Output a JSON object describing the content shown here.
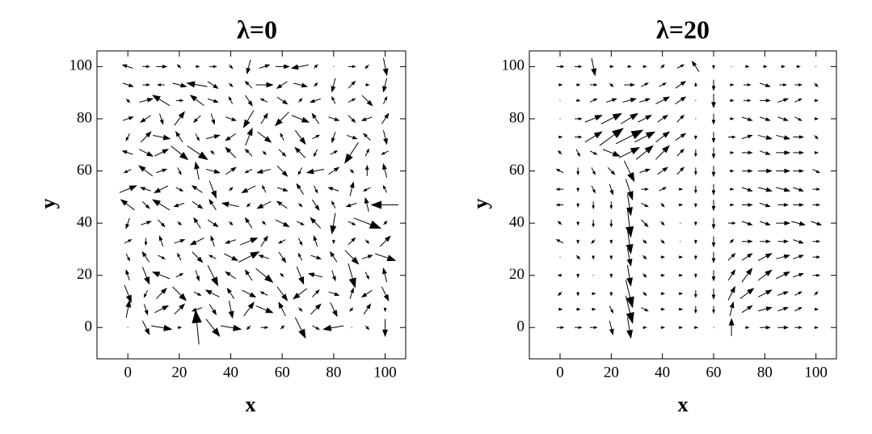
{
  "chart_data": [
    {
      "type": "quiver",
      "title": "λ=0",
      "xlabel": "x",
      "ylabel": "y",
      "color": "#000000",
      "x": [
        0,
        7,
        13,
        20,
        27,
        33,
        40,
        47,
        53,
        60,
        67,
        73,
        80,
        87,
        93,
        100
      ],
      "y": [
        0,
        7,
        13,
        20,
        27,
        33,
        40,
        47,
        53,
        60,
        67,
        73,
        80,
        87,
        93,
        100
      ],
      "u": [
        [
          0,
          2,
          6,
          1,
          -1,
          4,
          6,
          -1,
          2,
          1,
          3,
          2,
          -6,
          0,
          1,
          0
        ],
        [
          1,
          1,
          4,
          3,
          -3,
          2,
          1,
          3,
          5,
          -2,
          1,
          3,
          2,
          -1,
          2,
          0
        ],
        [
          2,
          -1,
          3,
          4,
          2,
          -4,
          -2,
          4,
          -2,
          3,
          -4,
          2,
          3,
          1,
          -3,
          2
        ],
        [
          -1,
          2,
          -5,
          2,
          1,
          3,
          -3,
          -2,
          5,
          -1,
          2,
          -4,
          1,
          2,
          1,
          -1
        ],
        [
          1,
          -2,
          2,
          -1,
          3,
          -2,
          4,
          6,
          -3,
          2,
          -1,
          3,
          -2,
          4,
          3,
          6
        ],
        [
          2,
          0,
          -1,
          3,
          -4,
          -1,
          -3,
          5,
          2,
          -2,
          1,
          -1,
          0,
          2,
          1,
          3
        ],
        [
          -1,
          3,
          2,
          1,
          -2,
          3,
          1,
          -2,
          -1,
          4,
          2,
          -3,
          -1,
          2,
          8,
          1
        ],
        [
          -4,
          2,
          -5,
          -3,
          3,
          -2,
          -5,
          -1,
          -4,
          -3,
          1,
          2,
          -1,
          -3,
          -1,
          -8
        ],
        [
          5,
          -3,
          -4,
          2,
          -3,
          2,
          1,
          -4,
          -1,
          3,
          -2,
          1,
          -3,
          1,
          -2,
          -1
        ],
        [
          -2,
          -4,
          3,
          1,
          -1,
          4,
          3,
          -2,
          -4,
          3,
          -1,
          -5,
          3,
          1,
          0,
          -1
        ],
        [
          -3,
          4,
          4,
          5,
          6,
          -1,
          -3,
          -2,
          1,
          2,
          -3,
          -1,
          2,
          -4,
          1,
          -2
        ],
        [
          -1,
          3,
          5,
          -2,
          1,
          4,
          -3,
          2,
          4,
          -1,
          3,
          2,
          -1,
          3,
          -2,
          1
        ],
        [
          3,
          -3,
          1,
          3,
          -2,
          1,
          3,
          -3,
          2,
          -4,
          5,
          -2,
          3,
          2,
          -3,
          2
        ],
        [
          1,
          4,
          -5,
          2,
          -4,
          3,
          -1,
          2,
          -2,
          3,
          1,
          -3,
          -1,
          2,
          3,
          1
        ],
        [
          3,
          2,
          -2,
          4,
          -6,
          3,
          1,
          -2,
          5,
          -3,
          4,
          1,
          -1,
          2,
          1,
          -1
        ],
        [
          -3,
          2,
          3,
          -1,
          1,
          2,
          1,
          -1,
          3,
          4,
          -5,
          1,
          0,
          2,
          -1,
          1
        ]
      ],
      "v": [
        [
          0,
          -4,
          -1,
          0,
          10,
          -5,
          -1,
          -1,
          0,
          1,
          -6,
          -1,
          -1,
          0,
          -1,
          -5
        ],
        [
          5,
          -3,
          2,
          3,
          -1,
          -3,
          -5,
          4,
          -2,
          4,
          -1,
          3,
          -4,
          -1,
          3,
          -1
        ],
        [
          -5,
          -2,
          3,
          -4,
          -1,
          2,
          3,
          -2,
          1,
          -4,
          -3,
          2,
          -1,
          3,
          -2,
          -4
        ],
        [
          3,
          -5,
          2,
          1,
          -3,
          -6,
          2,
          3,
          -4,
          1,
          -5,
          1,
          -3,
          -7,
          -2,
          4
        ],
        [
          -2,
          3,
          -1,
          2,
          -3,
          1,
          -2,
          3,
          1,
          -3,
          2,
          -1,
          3,
          -4,
          1,
          -2
        ],
        [
          1,
          -2,
          3,
          1,
          -2,
          3,
          -1,
          2,
          3,
          -1,
          -2,
          3,
          -1,
          2,
          -1,
          3
        ],
        [
          -3,
          1,
          -2,
          -1,
          3,
          -2,
          -1,
          3,
          1,
          -2,
          -1,
          3,
          -6,
          -1,
          -3,
          1
        ],
        [
          3,
          -2,
          3,
          -1,
          -2,
          3,
          1,
          -1,
          -2,
          2,
          -1,
          -3,
          2,
          -1,
          4,
          0
        ],
        [
          2,
          1,
          -2,
          -1,
          2,
          -5,
          1,
          -2,
          2,
          -1,
          3,
          -2,
          1,
          4,
          -1,
          2
        ],
        [
          -1,
          3,
          1,
          -2,
          5,
          -1,
          2,
          -1,
          -1,
          -3,
          -2,
          -1,
          2,
          -1,
          3,
          4
        ],
        [
          1,
          -2,
          2,
          -4,
          -4,
          1,
          3,
          2,
          -1,
          -2,
          3,
          -2,
          1,
          -6,
          2,
          -1
        ],
        [
          -2,
          3,
          -1,
          3,
          -2,
          1,
          -2,
          5,
          -3,
          2,
          -4,
          1,
          -3,
          -1,
          2,
          -4
        ],
        [
          1,
          -2,
          -3,
          4,
          -2,
          -3,
          -1,
          -5,
          3,
          -4,
          -2,
          3,
          -1,
          -2,
          -1,
          3
        ],
        [
          -1,
          1,
          3,
          0,
          3,
          -1,
          2,
          -3,
          1,
          -2,
          1,
          -1,
          2,
          1,
          -3,
          2
        ],
        [
          -1,
          0,
          0,
          -1,
          1,
          -2,
          -1,
          2,
          0,
          -2,
          -1,
          1,
          -4,
          2,
          0,
          -4
        ],
        [
          1,
          0,
          0,
          1,
          0,
          0,
          -1,
          -4,
          1,
          0,
          -1,
          1,
          0,
          0,
          -1,
          -5
        ]
      ],
      "xlim": [
        -12,
        108
      ],
      "ylim": [
        -12,
        106
      ],
      "xticks": [
        0,
        20,
        40,
        60,
        80,
        100
      ],
      "yticks": [
        0,
        20,
        40,
        60,
        80,
        100
      ]
    },
    {
      "type": "quiver",
      "title": "λ=20",
      "xlabel": "x",
      "ylabel": "y",
      "color": "#000000",
      "x": [
        0,
        7,
        13,
        20,
        27,
        33,
        40,
        47,
        53,
        60,
        67,
        73,
        80,
        87,
        93,
        100
      ],
      "y": [
        0,
        7,
        13,
        20,
        27,
        33,
        40,
        47,
        53,
        60,
        67,
        73,
        80,
        87,
        93,
        100
      ],
      "u": [
        [
          2,
          2,
          2,
          1,
          1,
          1,
          1,
          1,
          1,
          0,
          0,
          1,
          3,
          3,
          2,
          1
        ],
        [
          1,
          1,
          1,
          1,
          2,
          2,
          1,
          1,
          0,
          0,
          1,
          3,
          4,
          3,
          2,
          1
        ],
        [
          -1,
          0,
          1,
          0,
          2,
          1,
          1,
          1,
          0,
          0,
          2,
          4,
          4,
          3,
          2,
          1
        ],
        [
          -1,
          0,
          0,
          0,
          1,
          1,
          1,
          1,
          0,
          0,
          2,
          3,
          4,
          4,
          3,
          2
        ],
        [
          0,
          1,
          0,
          0,
          1,
          1,
          1,
          1,
          0,
          0,
          2,
          3,
          4,
          4,
          3,
          2
        ],
        [
          -2,
          0,
          -1,
          0,
          1,
          1,
          1,
          0,
          0,
          0,
          1,
          3,
          3,
          3,
          3,
          2
        ],
        [
          -1,
          0,
          0,
          0,
          1,
          2,
          1,
          0,
          0,
          0,
          2,
          3,
          3,
          4,
          4,
          3
        ],
        [
          -2,
          0,
          0,
          0,
          1,
          2,
          1,
          1,
          0,
          0,
          1,
          3,
          3,
          3,
          3,
          2
        ],
        [
          -2,
          0,
          1,
          1,
          2,
          2,
          2,
          1,
          0,
          0,
          1,
          3,
          4,
          4,
          3,
          2
        ],
        [
          -2,
          0,
          1,
          2,
          3,
          3,
          3,
          2,
          0,
          0,
          1,
          3,
          4,
          4,
          3,
          2
        ],
        [
          -1,
          1,
          2,
          5,
          6,
          5,
          4,
          2,
          0,
          0,
          1,
          3,
          3,
          4,
          3,
          1
        ],
        [
          1,
          2,
          5,
          7,
          8,
          6,
          4,
          3,
          0,
          0,
          2,
          3,
          4,
          4,
          3,
          1
        ],
        [
          0,
          2,
          5,
          6,
          5,
          4,
          3,
          2,
          0,
          0,
          1,
          3,
          3,
          3,
          2,
          1
        ],
        [
          0,
          1,
          2,
          3,
          4,
          3,
          4,
          3,
          0,
          0,
          1,
          2,
          3,
          3,
          2,
          1
        ],
        [
          1,
          1,
          2,
          1,
          3,
          2,
          2,
          3,
          0,
          0,
          1,
          2,
          3,
          2,
          2,
          1
        ],
        [
          2,
          2,
          1,
          1,
          1,
          1,
          1,
          2,
          -2,
          0,
          0,
          1,
          1,
          1,
          1,
          0
        ]
      ],
      "v": [
        [
          0,
          0,
          0,
          -4,
          -6,
          0,
          0,
          0,
          0,
          0,
          5,
          0,
          0,
          0,
          0,
          0
        ],
        [
          0,
          0,
          0,
          -2,
          -8,
          -1,
          0,
          0,
          -2,
          -2,
          4,
          2,
          1,
          1,
          1,
          0
        ],
        [
          -1,
          -1,
          0,
          -1,
          -8,
          -1,
          0,
          0,
          -2,
          -3,
          4,
          3,
          2,
          1,
          1,
          1
        ],
        [
          0,
          -1,
          0,
          -1,
          -6,
          -1,
          0,
          0,
          -1,
          -3,
          3,
          4,
          3,
          2,
          1,
          0
        ],
        [
          0,
          -1,
          -1,
          -1,
          -5,
          -1,
          0,
          0,
          -1,
          -3,
          2,
          2,
          2,
          1,
          1,
          0
        ],
        [
          1,
          -1,
          -1,
          -1,
          -7,
          -1,
          -1,
          0,
          -1,
          -3,
          1,
          0,
          0,
          0,
          -1,
          0
        ],
        [
          1,
          -1,
          -2,
          -2,
          -8,
          -2,
          -1,
          0,
          -1,
          -3,
          0,
          -1,
          -1,
          0,
          -1,
          -1
        ],
        [
          0,
          -1,
          -2,
          -2,
          -6,
          -1,
          -1,
          0,
          -1,
          -3,
          0,
          0,
          -1,
          0,
          0,
          0
        ],
        [
          0,
          -1,
          -2,
          -3,
          -6,
          0,
          1,
          0,
          -2,
          -3,
          0,
          -1,
          -1,
          -1,
          -1,
          0
        ],
        [
          1,
          -2,
          -2,
          -2,
          -6,
          1,
          2,
          2,
          -2,
          -3,
          0,
          0,
          0,
          0,
          0,
          -1
        ],
        [
          1,
          -2,
          -1,
          -2,
          3,
          4,
          4,
          2,
          -2,
          -3,
          0,
          0,
          -1,
          0,
          0,
          0
        ],
        [
          0,
          0,
          3,
          5,
          4,
          3,
          3,
          2,
          -1,
          -3,
          0,
          1,
          -1,
          -1,
          0,
          -1
        ],
        [
          0,
          0,
          2,
          3,
          3,
          2,
          2,
          2,
          0,
          -3,
          0,
          -1,
          -1,
          -1,
          -1,
          0
        ],
        [
          0,
          0,
          1,
          1,
          1,
          1,
          2,
          2,
          0,
          -4,
          0,
          0,
          0,
          1,
          1,
          0
        ],
        [
          0,
          0,
          0,
          -1,
          0,
          1,
          1,
          2,
          1,
          -3,
          0,
          0,
          -1,
          0,
          0,
          -1
        ],
        [
          0,
          0,
          -5,
          0,
          0,
          0,
          1,
          1,
          3,
          -1,
          0,
          0,
          0,
          0,
          0,
          0
        ]
      ],
      "xlim": [
        -12,
        108
      ],
      "ylim": [
        -12,
        106
      ],
      "xticks": [
        0,
        20,
        40,
        60,
        80,
        100
      ],
      "yticks": [
        0,
        20,
        40,
        60,
        80,
        100
      ]
    }
  ]
}
